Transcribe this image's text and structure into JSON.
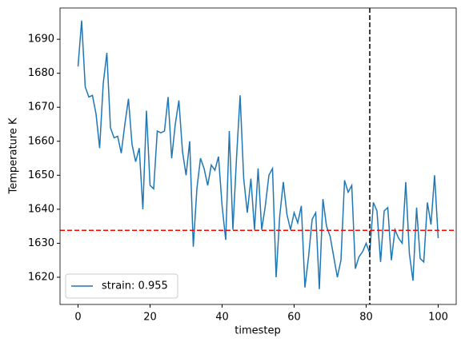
{
  "chart_data": {
    "type": "line",
    "xlabel": "timestep",
    "ylabel": "Temperature K",
    "x": [
      0,
      1,
      2,
      3,
      4,
      5,
      6,
      7,
      8,
      9,
      10,
      11,
      12,
      13,
      14,
      15,
      16,
      17,
      18,
      19,
      20,
      21,
      22,
      23,
      24,
      25,
      26,
      27,
      28,
      29,
      30,
      31,
      32,
      33,
      34,
      35,
      36,
      37,
      38,
      39,
      40,
      41,
      42,
      43,
      44,
      45,
      46,
      47,
      48,
      49,
      50,
      51,
      52,
      53,
      54,
      55,
      56,
      57,
      58,
      59,
      60,
      61,
      62,
      63,
      64,
      65,
      66,
      67,
      68,
      69,
      70,
      71,
      72,
      73,
      74,
      75,
      76,
      77,
      78,
      79,
      80,
      81,
      82,
      83,
      84,
      85,
      86,
      87,
      88,
      89,
      90,
      91,
      92,
      93,
      94,
      95,
      96,
      97,
      98,
      99,
      100
    ],
    "series": [
      {
        "name": "strain: 0.955",
        "color": "#1f77b4",
        "values": [
          1682,
          1695.5,
          1676,
          1673,
          1673.5,
          1668,
          1658,
          1677,
          1686,
          1664,
          1661,
          1661.5,
          1656.5,
          1665,
          1672.5,
          1659,
          1654,
          1658,
          1640,
          1669,
          1647,
          1646,
          1663,
          1662.5,
          1663,
          1673,
          1655,
          1665,
          1672,
          1657,
          1650,
          1660,
          1629,
          1646,
          1655,
          1652,
          1647,
          1653,
          1651.5,
          1655.5,
          1641,
          1631,
          1663,
          1634,
          1655,
          1673.5,
          1649,
          1639,
          1649,
          1634,
          1652,
          1634,
          1641,
          1650,
          1652,
          1620,
          1638,
          1648,
          1638.5,
          1634,
          1639,
          1636,
          1641,
          1617,
          1626,
          1637,
          1639,
          1616.5,
          1643,
          1635,
          1632,
          1626,
          1620,
          1625,
          1648.5,
          1645,
          1647,
          1622.5,
          1626,
          1627.5,
          1630,
          1627,
          1642,
          1639.5,
          1624.5,
          1639.5,
          1640.5,
          1625,
          1634,
          1631.5,
          1630,
          1648,
          1627,
          1619,
          1640.5,
          1625.5,
          1624.5,
          1642,
          1635.5,
          1650,
          1631.5
        ]
      }
    ],
    "xlim": [
      -5,
      105
    ],
    "ylim": [
      1612,
      1699.2
    ],
    "xticks": [
      0,
      20,
      40,
      60,
      80,
      100
    ],
    "yticks": [
      1620,
      1630,
      1640,
      1650,
      1660,
      1670,
      1680,
      1690
    ],
    "vline": {
      "x": 81,
      "color": "#000000"
    },
    "hline": {
      "y": 1633.8,
      "color": "#ff0000"
    },
    "legend": "lower left"
  }
}
